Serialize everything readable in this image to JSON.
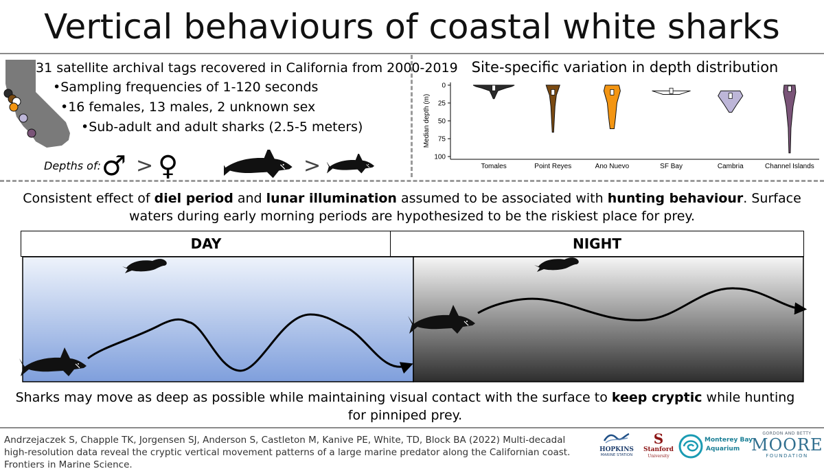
{
  "title": "Vertical behaviours of coastal white sharks",
  "summary": {
    "bullets": [
      "31 satellite archival tags recovered in California from 2000-2019",
      "•Sampling frequencies of 1-120 seconds",
      "•16 females, 13 males, 2 unknown sex",
      "•Sub-adult and adult sharks (2.5-5 meters)"
    ],
    "depths_label": "Depths of:",
    "male_symbol": "♂",
    "female_symbol": "♀",
    "gt1": ">",
    "gt2": ">"
  },
  "map_site_colors": [
    "#2b2b2b",
    "#7a4a12",
    "#ffffff",
    "#f39512",
    "#bdb6d8",
    "#7a5478"
  ],
  "chart_data": {
    "type": "violin",
    "title": "Site-specific variation in depth distribution",
    "ylabel": "Median depth (m)",
    "ylim": [
      0,
      100
    ],
    "yinverted": true,
    "yticks": [
      0,
      25,
      50,
      75,
      100
    ],
    "categories": [
      "Tomales",
      "Point Reyes",
      "Ano Nuevo",
      "SF Bay",
      "Cambria",
      "Channel Islands"
    ],
    "colors": [
      "#2b2b2b",
      "#7a4a12",
      "#f39512",
      "#ffffff",
      "#bdb6d8",
      "#7a5478"
    ],
    "max_depth": [
      19,
      66,
      61,
      13,
      38,
      95
    ],
    "median": [
      4,
      10,
      10,
      8,
      15,
      5
    ]
  },
  "finding_text": {
    "p1": "Consistent effect of ",
    "b1": "diel period",
    "p2": " and ",
    "b2": "lunar illumination",
    "p3": " assumed to be associated with ",
    "b3": "hunting behaviour",
    "p4": ". Surface waters during early morning periods are hypothesized to be the riskiest place for prey."
  },
  "day_label": "DAY",
  "night_label": "NIGHT",
  "day_colors": [
    "#eef3fb",
    "#7f9fdc"
  ],
  "night_colors": [
    "#f6f6f6",
    "#2e2e2e"
  ],
  "conclusion": {
    "p1": "Sharks may move as deep as possible while maintaining visual contact with the surface to ",
    "b1": "keep cryptic",
    "p2": " while hunting for pinniped prey."
  },
  "citation": "Andrzejaczek S, Chapple TK, Jorgensen SJ, Anderson S, Castleton M, Kanive PE, White, TD, Block BA (2022) Multi-decadal high-resolution data reveal the cryptic vertical movement patterns of a large marine predator along the Californian coast. Frontiers in Marine Science.",
  "logos": {
    "hopkins": "HOPKINS",
    "hopkins_sub": "MARINE STATION",
    "stanford": "Stanford",
    "stanford_sub": "University",
    "stanford_letter": "S",
    "mba_line1": "Monterey Bay",
    "mba_line2": "Aquarium",
    "moore_top": "GORDON AND BETTY",
    "moore_main": "MOORE",
    "moore_bottom": "FOUNDATION"
  }
}
